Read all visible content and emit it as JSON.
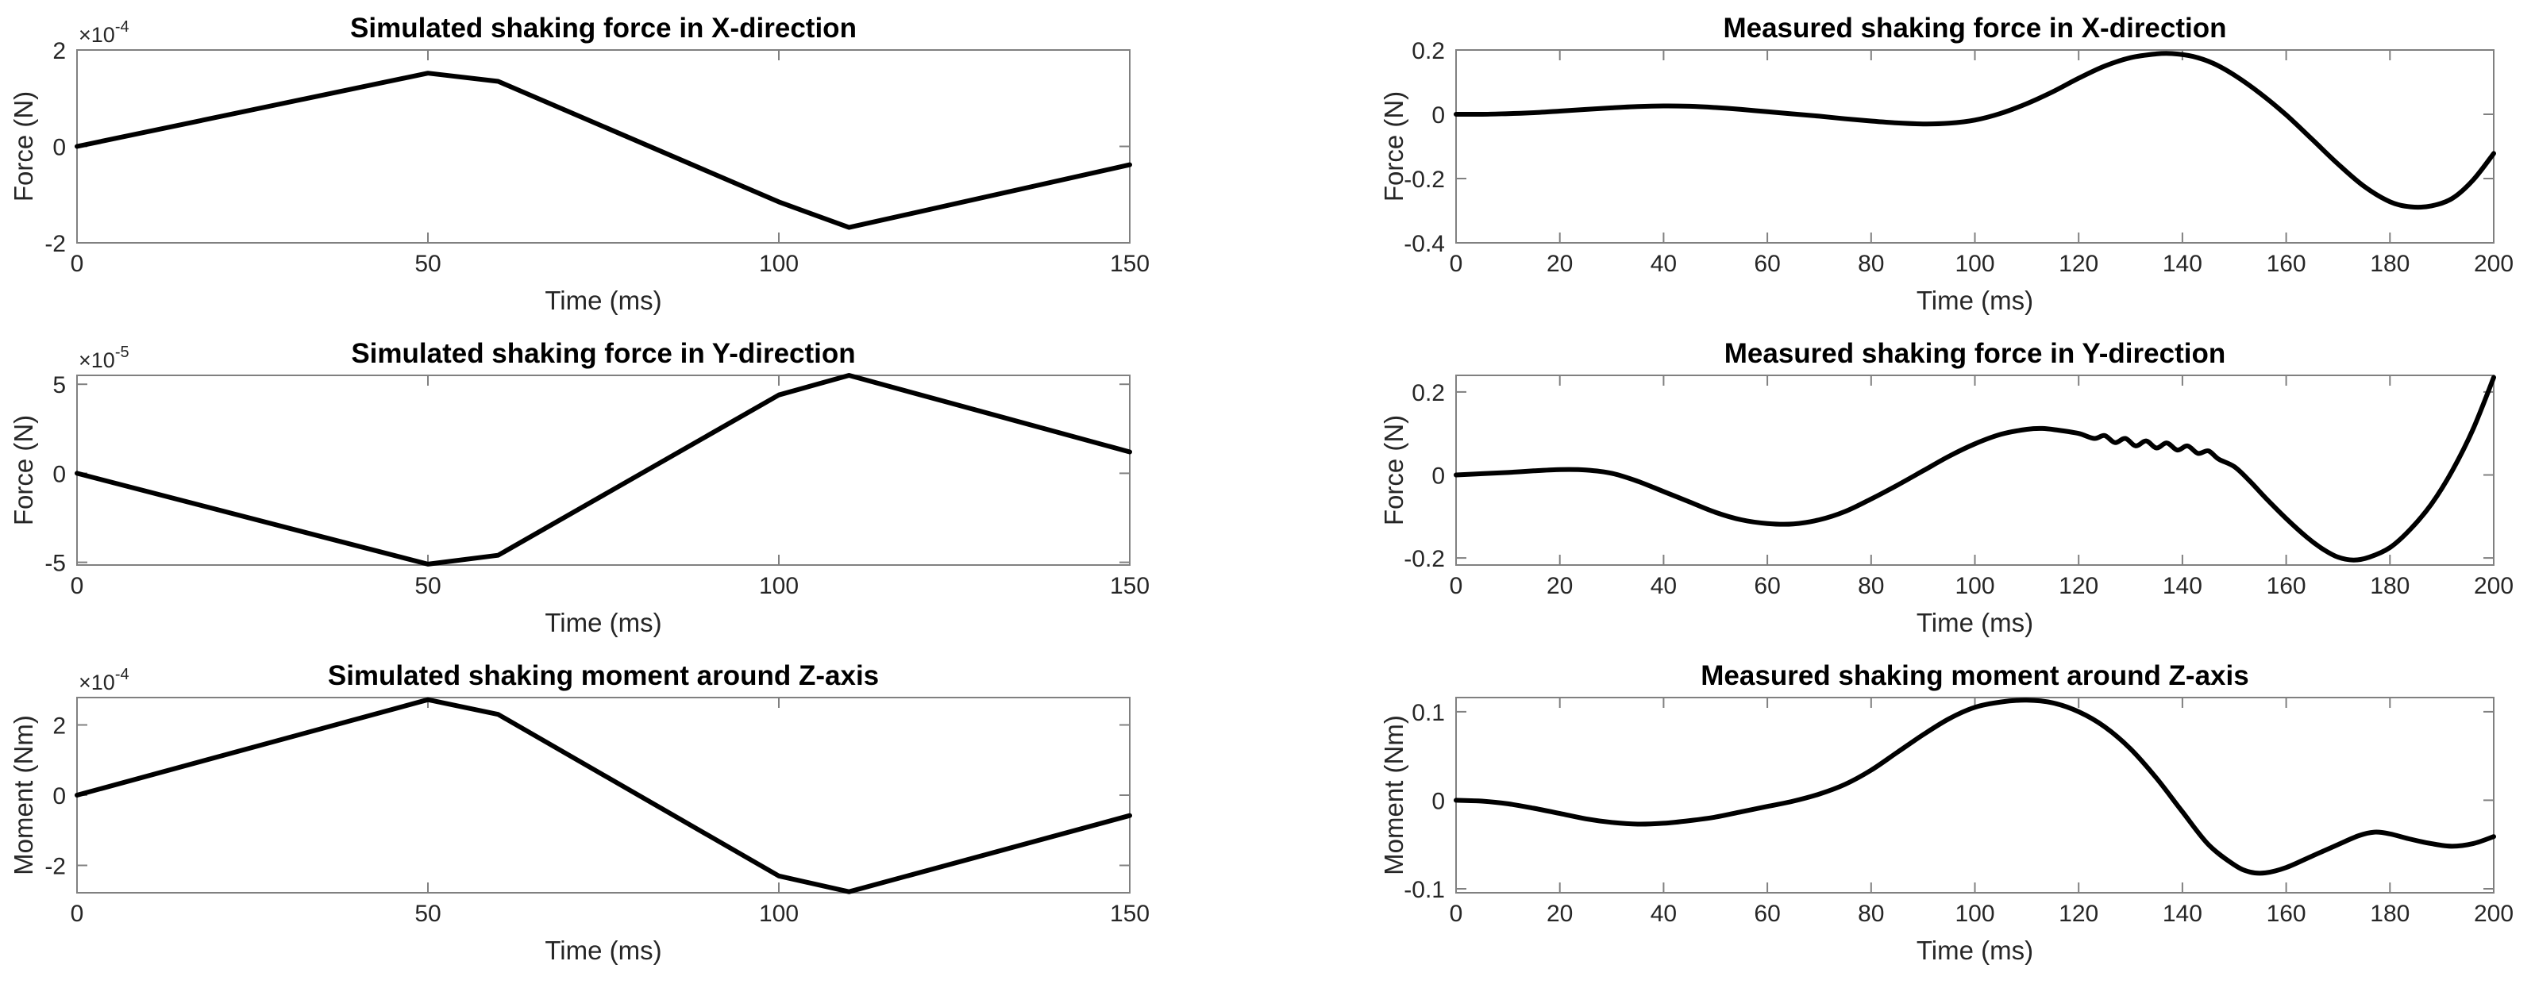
{
  "figure": {
    "background": "#ffffff",
    "description": "Comparison of simulated and measured shaking forces and moments"
  },
  "style": {
    "axis_color": "#808080",
    "tick_color": "#808080",
    "text_color": "#262626",
    "title_color": "#000000",
    "line_color": "#000000",
    "line_width": 6
  },
  "chart_data": [
    {
      "type": "line",
      "title": "Simulated shaking force in X-direction",
      "xlabel": "Time (ms)",
      "ylabel": "Force (N)",
      "exponent": {
        "base": "×10",
        "power": "-4"
      },
      "xlim": [
        0,
        150
      ],
      "ylim": [
        -2,
        2
      ],
      "xticks": [
        0,
        50,
        100,
        150
      ],
      "xtick_labels": [
        "0",
        "50",
        "100",
        "150"
      ],
      "yticks": [
        -2,
        0,
        2
      ],
      "ytick_labels": [
        "-2",
        "0",
        "2"
      ],
      "grid": false,
      "smooth": false,
      "legend": null,
      "points": [
        [
          0,
          0
        ],
        [
          50,
          1.52
        ],
        [
          60,
          1.35
        ],
        [
          100,
          -1.15
        ],
        [
          110,
          -1.68
        ],
        [
          150,
          -0.38
        ]
      ]
    },
    {
      "type": "line",
      "title": "Measured shaking force in X-direction",
      "xlabel": "Time (ms)",
      "ylabel": "Force (N)",
      "exponent": null,
      "xlim": [
        0,
        200
      ],
      "ylim": [
        -0.4,
        0.2
      ],
      "xticks": [
        0,
        20,
        40,
        60,
        80,
        100,
        120,
        140,
        160,
        180,
        200
      ],
      "xtick_labels": [
        "0",
        "20",
        "40",
        "60",
        "80",
        "100",
        "120",
        "140",
        "160",
        "180",
        "200"
      ],
      "yticks": [
        -0.4,
        -0.2,
        0,
        0.2
      ],
      "ytick_labels": [
        "-0.4",
        "-0.2",
        "0",
        "0.2"
      ],
      "grid": false,
      "smooth": true,
      "legend": null,
      "points": [
        [
          0,
          0
        ],
        [
          5,
          0.0
        ],
        [
          10,
          0.002
        ],
        [
          15,
          0.005
        ],
        [
          20,
          0.01
        ],
        [
          25,
          0.015
        ],
        [
          30,
          0.02
        ],
        [
          35,
          0.024
        ],
        [
          40,
          0.026
        ],
        [
          45,
          0.025
        ],
        [
          50,
          0.021
        ],
        [
          55,
          0.015
        ],
        [
          60,
          0.008
        ],
        [
          65,
          0.001
        ],
        [
          70,
          -0.006
        ],
        [
          75,
          -0.014
        ],
        [
          80,
          -0.021
        ],
        [
          85,
          -0.027
        ],
        [
          90,
          -0.03
        ],
        [
          95,
          -0.028
        ],
        [
          100,
          -0.018
        ],
        [
          105,
          0.003
        ],
        [
          110,
          0.033
        ],
        [
          115,
          0.07
        ],
        [
          120,
          0.112
        ],
        [
          125,
          0.15
        ],
        [
          130,
          0.176
        ],
        [
          135,
          0.188
        ],
        [
          138,
          0.189
        ],
        [
          142,
          0.18
        ],
        [
          146,
          0.158
        ],
        [
          150,
          0.122
        ],
        [
          155,
          0.065
        ],
        [
          160,
          -0.002
        ],
        [
          165,
          -0.078
        ],
        [
          170,
          -0.155
        ],
        [
          175,
          -0.224
        ],
        [
          180,
          -0.272
        ],
        [
          184,
          -0.288
        ],
        [
          188,
          -0.285
        ],
        [
          192,
          -0.262
        ],
        [
          196,
          -0.205
        ],
        [
          200,
          -0.122
        ]
      ]
    },
    {
      "type": "line",
      "title": "Simulated shaking force in Y-direction",
      "xlabel": "Time (ms)",
      "ylabel": "Force (N)",
      "exponent": {
        "base": "×10",
        "power": "-5"
      },
      "xlim": [
        0,
        150
      ],
      "ylim": [
        -5.15,
        5.5
      ],
      "xticks": [
        0,
        50,
        100,
        150
      ],
      "xtick_labels": [
        "0",
        "50",
        "100",
        "150"
      ],
      "yticks": [
        -5,
        0,
        5
      ],
      "ytick_labels": [
        "-5",
        "0",
        "5"
      ],
      "grid": false,
      "smooth": false,
      "legend": null,
      "points": [
        [
          0,
          0
        ],
        [
          50,
          -5.1
        ],
        [
          60,
          -4.6
        ],
        [
          100,
          4.4
        ],
        [
          110,
          5.5
        ],
        [
          150,
          1.2
        ]
      ]
    },
    {
      "type": "line",
      "title": "Measured shaking force in Y-direction",
      "xlabel": "Time (ms)",
      "ylabel": "Force (N)",
      "exponent": null,
      "xlim": [
        0,
        200
      ],
      "ylim": [
        -0.217,
        0.24
      ],
      "xticks": [
        0,
        20,
        40,
        60,
        80,
        100,
        120,
        140,
        160,
        180,
        200
      ],
      "xtick_labels": [
        "0",
        "20",
        "40",
        "60",
        "80",
        "100",
        "120",
        "140",
        "160",
        "180",
        "200"
      ],
      "yticks": [
        -0.2,
        0,
        0.2
      ],
      "ytick_labels": [
        "-0.2",
        "0",
        "0.2"
      ],
      "grid": false,
      "smooth": true,
      "legend": null,
      "points": [
        [
          0,
          0
        ],
        [
          5,
          0.003
        ],
        [
          10,
          0.006
        ],
        [
          15,
          0.01
        ],
        [
          20,
          0.013
        ],
        [
          25,
          0.012
        ],
        [
          30,
          0.004
        ],
        [
          35,
          -0.015
        ],
        [
          40,
          -0.04
        ],
        [
          45,
          -0.065
        ],
        [
          50,
          -0.09
        ],
        [
          55,
          -0.108
        ],
        [
          60,
          -0.117
        ],
        [
          65,
          -0.118
        ],
        [
          70,
          -0.108
        ],
        [
          75,
          -0.088
        ],
        [
          80,
          -0.058
        ],
        [
          85,
          -0.025
        ],
        [
          90,
          0.01
        ],
        [
          95,
          0.045
        ],
        [
          100,
          0.075
        ],
        [
          105,
          0.098
        ],
        [
          110,
          0.11
        ],
        [
          113,
          0.112
        ],
        [
          116,
          0.108
        ],
        [
          120,
          0.1
        ],
        [
          123,
          0.088
        ],
        [
          125,
          0.095
        ],
        [
          127,
          0.078
        ],
        [
          129,
          0.088
        ],
        [
          131,
          0.07
        ],
        [
          133,
          0.082
        ],
        [
          135,
          0.065
        ],
        [
          137,
          0.077
        ],
        [
          139,
          0.06
        ],
        [
          141,
          0.07
        ],
        [
          143,
          0.052
        ],
        [
          145,
          0.058
        ],
        [
          147,
          0.038
        ],
        [
          150,
          0.02
        ],
        [
          153,
          -0.015
        ],
        [
          156,
          -0.055
        ],
        [
          160,
          -0.105
        ],
        [
          164,
          -0.15
        ],
        [
          167,
          -0.178
        ],
        [
          170,
          -0.198
        ],
        [
          173,
          -0.205
        ],
        [
          176,
          -0.198
        ],
        [
          180,
          -0.175
        ],
        [
          184,
          -0.13
        ],
        [
          188,
          -0.07
        ],
        [
          192,
          0.01
        ],
        [
          196,
          0.11
        ],
        [
          200,
          0.235
        ]
      ]
    },
    {
      "type": "line",
      "title": "Simulated shaking moment around Z-axis",
      "xlabel": "Time (ms)",
      "ylabel": "Moment (Nm)",
      "exponent": {
        "base": "×10",
        "power": "-4"
      },
      "xlim": [
        0,
        150
      ],
      "ylim": [
        -2.78,
        2.78
      ],
      "xticks": [
        0,
        50,
        100,
        150
      ],
      "xtick_labels": [
        "0",
        "50",
        "100",
        "150"
      ],
      "yticks": [
        -2,
        0,
        2
      ],
      "ytick_labels": [
        "-2",
        "0",
        "2"
      ],
      "grid": false,
      "smooth": false,
      "legend": null,
      "points": [
        [
          0,
          0
        ],
        [
          50,
          2.72
        ],
        [
          60,
          2.3
        ],
        [
          100,
          -2.3
        ],
        [
          110,
          -2.75
        ],
        [
          150,
          -0.58
        ]
      ]
    },
    {
      "type": "line",
      "title": "Measured shaking moment around Z-axis",
      "xlabel": "Time (ms)",
      "ylabel": "Moment (Nm)",
      "exponent": null,
      "xlim": [
        0,
        200
      ],
      "ylim": [
        -0.1045,
        0.116
      ],
      "xticks": [
        0,
        20,
        40,
        60,
        80,
        100,
        120,
        140,
        160,
        180,
        200
      ],
      "xtick_labels": [
        "0",
        "20",
        "40",
        "60",
        "80",
        "100",
        "120",
        "140",
        "160",
        "180",
        "200"
      ],
      "yticks": [
        -0.1,
        0,
        0.1
      ],
      "ytick_labels": [
        "-0.1",
        "0",
        "0.1"
      ],
      "grid": false,
      "smooth": true,
      "legend": null,
      "points": [
        [
          0,
          0
        ],
        [
          5,
          -0.001
        ],
        [
          10,
          -0.004
        ],
        [
          15,
          -0.009
        ],
        [
          20,
          -0.015
        ],
        [
          25,
          -0.021
        ],
        [
          30,
          -0.025
        ],
        [
          35,
          -0.027
        ],
        [
          40,
          -0.026
        ],
        [
          45,
          -0.023
        ],
        [
          50,
          -0.019
        ],
        [
          55,
          -0.013
        ],
        [
          60,
          -0.007
        ],
        [
          65,
          -0.001
        ],
        [
          70,
          0.007
        ],
        [
          75,
          0.018
        ],
        [
          80,
          0.034
        ],
        [
          85,
          0.054
        ],
        [
          90,
          0.074
        ],
        [
          95,
          0.092
        ],
        [
          100,
          0.105
        ],
        [
          105,
          0.111
        ],
        [
          110,
          0.113
        ],
        [
          115,
          0.11
        ],
        [
          120,
          0.1
        ],
        [
          125,
          0.083
        ],
        [
          130,
          0.058
        ],
        [
          135,
          0.025
        ],
        [
          140,
          -0.013
        ],
        [
          145,
          -0.05
        ],
        [
          150,
          -0.073
        ],
        [
          153,
          -0.081
        ],
        [
          156,
          -0.082
        ],
        [
          160,
          -0.076
        ],
        [
          165,
          -0.063
        ],
        [
          170,
          -0.05
        ],
        [
          174,
          -0.04
        ],
        [
          177,
          -0.036
        ],
        [
          180,
          -0.038
        ],
        [
          184,
          -0.044
        ],
        [
          188,
          -0.049
        ],
        [
          192,
          -0.052
        ],
        [
          196,
          -0.049
        ],
        [
          200,
          -0.041
        ]
      ]
    }
  ]
}
